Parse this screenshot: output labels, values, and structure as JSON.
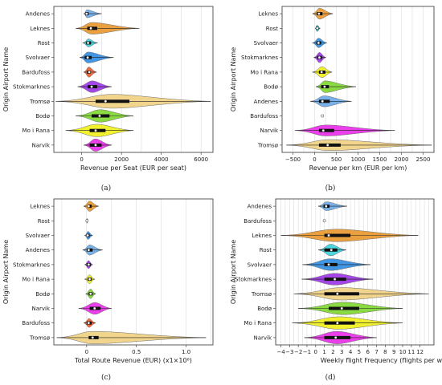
{
  "chart_data": [
    {
      "type": "violin",
      "panel_label": "(a)",
      "xlabel": "Revenue per Seat (EUR per seat)",
      "ylabel": "Origin Airport Name",
      "xlim": [
        -1400,
        6600
      ],
      "xticks": [
        0,
        2000,
        4000,
        6000
      ],
      "xtick_labels": [
        "0",
        "2000",
        "4000",
        "6000"
      ],
      "grid": true,
      "categories": [
        "Andenes",
        "Leknes",
        "Rost",
        "Svolvaer",
        "Bardufoss",
        "Stokmarknes",
        "Tromsø",
        "Bodø",
        "Mo i Rana",
        "Narvik"
      ],
      "violins": [
        {
          "color": "#6aa8e8",
          "min": 100,
          "max": 1000,
          "q1": 180,
          "median": 250,
          "q3": 350,
          "width": 0.55
        },
        {
          "color": "#e8962a",
          "min": -300,
          "max": 2900,
          "q1": 280,
          "median": 460,
          "q3": 780,
          "width": 0.8
        },
        {
          "color": "#3ad0dc",
          "min": 50,
          "max": 800,
          "q1": 220,
          "median": 320,
          "q3": 470,
          "width": 0.55
        },
        {
          "color": "#2f8be0",
          "min": -100,
          "max": 1600,
          "q1": 150,
          "median": 300,
          "q3": 500,
          "width": 0.75
        },
        {
          "color": "#f05a2a",
          "min": 100,
          "max": 750,
          "q1": 270,
          "median": 380,
          "q3": 450,
          "width": 0.7
        },
        {
          "color": "#9a32e6",
          "min": -200,
          "max": 1500,
          "q1": 300,
          "median": 500,
          "q3": 780,
          "width": 0.8
        },
        {
          "color": "#f0d080",
          "min": -1300,
          "max": 6500,
          "q1": 700,
          "median": 1200,
          "q3": 2400,
          "width": 0.95
        },
        {
          "color": "#7dd62e",
          "min": -300,
          "max": 2600,
          "q1": 500,
          "median": 900,
          "q3": 1400,
          "width": 0.85
        },
        {
          "color": "#f0f018",
          "min": -800,
          "max": 2600,
          "q1": 400,
          "median": 700,
          "q3": 1200,
          "width": 0.85
        },
        {
          "color": "#e82ae8",
          "min": 100,
          "max": 1500,
          "q1": 400,
          "median": 700,
          "q3": 1000,
          "width": 0.85
        }
      ]
    },
    {
      "type": "violin",
      "panel_label": "(b)",
      "xlabel": "Revenue per km (EUR per km)",
      "ylabel": "Origin Airport Name",
      "xlim": [
        -750,
        2750
      ],
      "xticks": [
        -500,
        0,
        500,
        1000,
        1500,
        2000,
        2500
      ],
      "xtick_labels": [
        "−500",
        "0",
        "500",
        "1000",
        "1500",
        "2000",
        "2500"
      ],
      "grid": true,
      "categories": [
        "Leknes",
        "Rost",
        "Svolvaer",
        "Stokmarknes",
        "Mo i Rana",
        "Bodø",
        "Andenes",
        "Bardufoss",
        "Narvik",
        "Tromsø"
      ],
      "violins": [
        {
          "color": "#e8962a",
          "min": -50,
          "max": 420,
          "q1": 50,
          "median": 100,
          "q3": 180,
          "width": 0.75
        },
        {
          "color": "#3ad0dc",
          "min": 10,
          "max": 130,
          "q1": 30,
          "median": 60,
          "q3": 90,
          "width": 0.45
        },
        {
          "color": "#2f8be0",
          "min": -50,
          "max": 280,
          "q1": 40,
          "median": 90,
          "q3": 150,
          "width": 0.65
        },
        {
          "color": "#9a32e6",
          "min": -20,
          "max": 260,
          "q1": 60,
          "median": 110,
          "q3": 170,
          "width": 0.7
        },
        {
          "color": "#f0f018",
          "min": -50,
          "max": 400,
          "q1": 100,
          "median": 160,
          "q3": 250,
          "width": 0.75
        },
        {
          "color": "#7dd62e",
          "min": 30,
          "max": 950,
          "q1": 150,
          "median": 230,
          "q3": 330,
          "width": 0.8
        },
        {
          "color": "#6aa8e8",
          "min": -100,
          "max": 850,
          "q1": 100,
          "median": 180,
          "q3": 350,
          "width": 0.75
        },
        {
          "color": "#f05a2a",
          "min": 180,
          "max": 180,
          "q1": 180,
          "median": 180,
          "q3": 180,
          "width": 0.15
        },
        {
          "color": "#e82ae8",
          "min": -450,
          "max": 1850,
          "q1": 100,
          "median": 200,
          "q3": 450,
          "width": 0.75
        },
        {
          "color": "#f0d080",
          "min": -650,
          "max": 2700,
          "q1": 100,
          "median": 300,
          "q3": 600,
          "width": 0.75
        }
      ]
    },
    {
      "type": "violin",
      "panel_label": "(c)",
      "xlabel": "Total Route Revenue (EUR) (x1×10⁶)",
      "ylabel": "Origin Airport Name",
      "xlim": [
        -0.33,
        1.27
      ],
      "xticks": [
        0,
        0.5,
        1.0
      ],
      "xtick_labels": [
        "0",
        "0.5",
        "1.0"
      ],
      "grid": true,
      "categories": [
        "Leknes",
        "Rost",
        "Svolvaer",
        "Andenes",
        "Stokmarknes",
        "Mo i Rana",
        "Bodø",
        "Narvik",
        "Bardufoss",
        "Tromsø"
      ],
      "violins": [
        {
          "color": "#e8962a",
          "min": -0.03,
          "max": 0.12,
          "q1": 0.01,
          "median": 0.02,
          "q3": 0.05,
          "width": 0.7
        },
        {
          "color": "#3ad0dc",
          "min": -0.005,
          "max": 0.01,
          "q1": 0.0,
          "median": 0.003,
          "q3": 0.006,
          "width": 0.35
        },
        {
          "color": "#2f8be0",
          "min": -0.02,
          "max": 0.06,
          "q1": 0.0,
          "median": 0.01,
          "q3": 0.03,
          "width": 0.55
        },
        {
          "color": "#6aa8e8",
          "min": -0.04,
          "max": 0.16,
          "q1": 0.0,
          "median": 0.02,
          "q3": 0.06,
          "width": 0.7
        },
        {
          "color": "#9a32e6",
          "min": -0.02,
          "max": 0.06,
          "q1": 0.0,
          "median": 0.02,
          "q3": 0.04,
          "width": 0.55
        },
        {
          "color": "#f0f018",
          "min": -0.02,
          "max": 0.08,
          "q1": 0.01,
          "median": 0.03,
          "q3": 0.05,
          "width": 0.6
        },
        {
          "color": "#7dd62e",
          "min": -0.01,
          "max": 0.09,
          "q1": 0.02,
          "median": 0.04,
          "q3": 0.06,
          "width": 0.65
        },
        {
          "color": "#e82ae8",
          "min": -0.08,
          "max": 0.25,
          "q1": 0.03,
          "median": 0.08,
          "q3": 0.14,
          "width": 0.8
        },
        {
          "color": "#f05a2a",
          "min": -0.03,
          "max": 0.09,
          "q1": 0.0,
          "median": 0.02,
          "q3": 0.05,
          "width": 0.6
        },
        {
          "color": "#f0d080",
          "min": -0.3,
          "max": 1.2,
          "q1": 0.02,
          "median": 0.06,
          "q3": 0.12,
          "width": 0.85
        }
      ]
    },
    {
      "type": "violin",
      "panel_label": "(d)",
      "xlabel": "Weekly flight Frequency (flights per we",
      "ylabel": "Origin Airport Name",
      "xlim": [
        -4.6,
        13.6
      ],
      "xticks": [
        -4,
        -3,
        -2,
        -1,
        0,
        1,
        2,
        3,
        4,
        5,
        6,
        7,
        8,
        9,
        10,
        11,
        12
      ],
      "xtick_labels": [
        "−4",
        "−3",
        "−2",
        "−1",
        "0",
        "1",
        "2",
        "3",
        "4",
        "5",
        "6",
        "7",
        "8",
        "9",
        "10",
        "11",
        "12"
      ],
      "grid": true,
      "categories": [
        "Andenes",
        "Bardufoss",
        "Leknes",
        "Rost",
        "Svolvaer",
        "Stokmarknes",
        "Tromsø",
        "Bodø",
        "Mo i Rana",
        "Narvik"
      ],
      "violins": [
        {
          "color": "#6aa8e8",
          "min": 0.3,
          "max": 3.6,
          "q1": 0.9,
          "median": 1.2,
          "q3": 1.6,
          "width": 0.6
        },
        {
          "color": "#f05a2a",
          "min": 1.0,
          "max": 1.0,
          "q1": 1.0,
          "median": 1.0,
          "q3": 1.0,
          "width": 0.15
        },
        {
          "color": "#e8962a",
          "min": -4.0,
          "max": 11.8,
          "q1": 1.0,
          "median": 1.5,
          "q3": 4.0,
          "width": 0.85
        },
        {
          "color": "#3ad0dc",
          "min": 0.3,
          "max": 3.5,
          "q1": 1.0,
          "median": 1.8,
          "q3": 2.5,
          "width": 0.8
        },
        {
          "color": "#2f8be0",
          "min": -1.5,
          "max": 6.3,
          "q1": 1.0,
          "median": 1.5,
          "q3": 2.5,
          "width": 0.8
        },
        {
          "color": "#9a32e6",
          "min": -1.6,
          "max": 6.6,
          "q1": 1.0,
          "median": 2.2,
          "q3": 3.5,
          "width": 0.8
        },
        {
          "color": "#f0d080",
          "min": -2.5,
          "max": 13.0,
          "q1": 1.0,
          "median": 2.5,
          "q3": 5.0,
          "width": 0.85
        },
        {
          "color": "#7dd62e",
          "min": -2.0,
          "max": 10.0,
          "q1": 1.5,
          "median": 3.0,
          "q3": 5.0,
          "width": 0.85
        },
        {
          "color": "#f0f018",
          "min": -2.7,
          "max": 10.0,
          "q1": 1.0,
          "median": 2.5,
          "q3": 4.5,
          "width": 0.85
        },
        {
          "color": "#e82ae8",
          "min": -1.3,
          "max": 7.0,
          "q1": 1.0,
          "median": 2.3,
          "q3": 4.0,
          "width": 0.85
        }
      ]
    }
  ]
}
